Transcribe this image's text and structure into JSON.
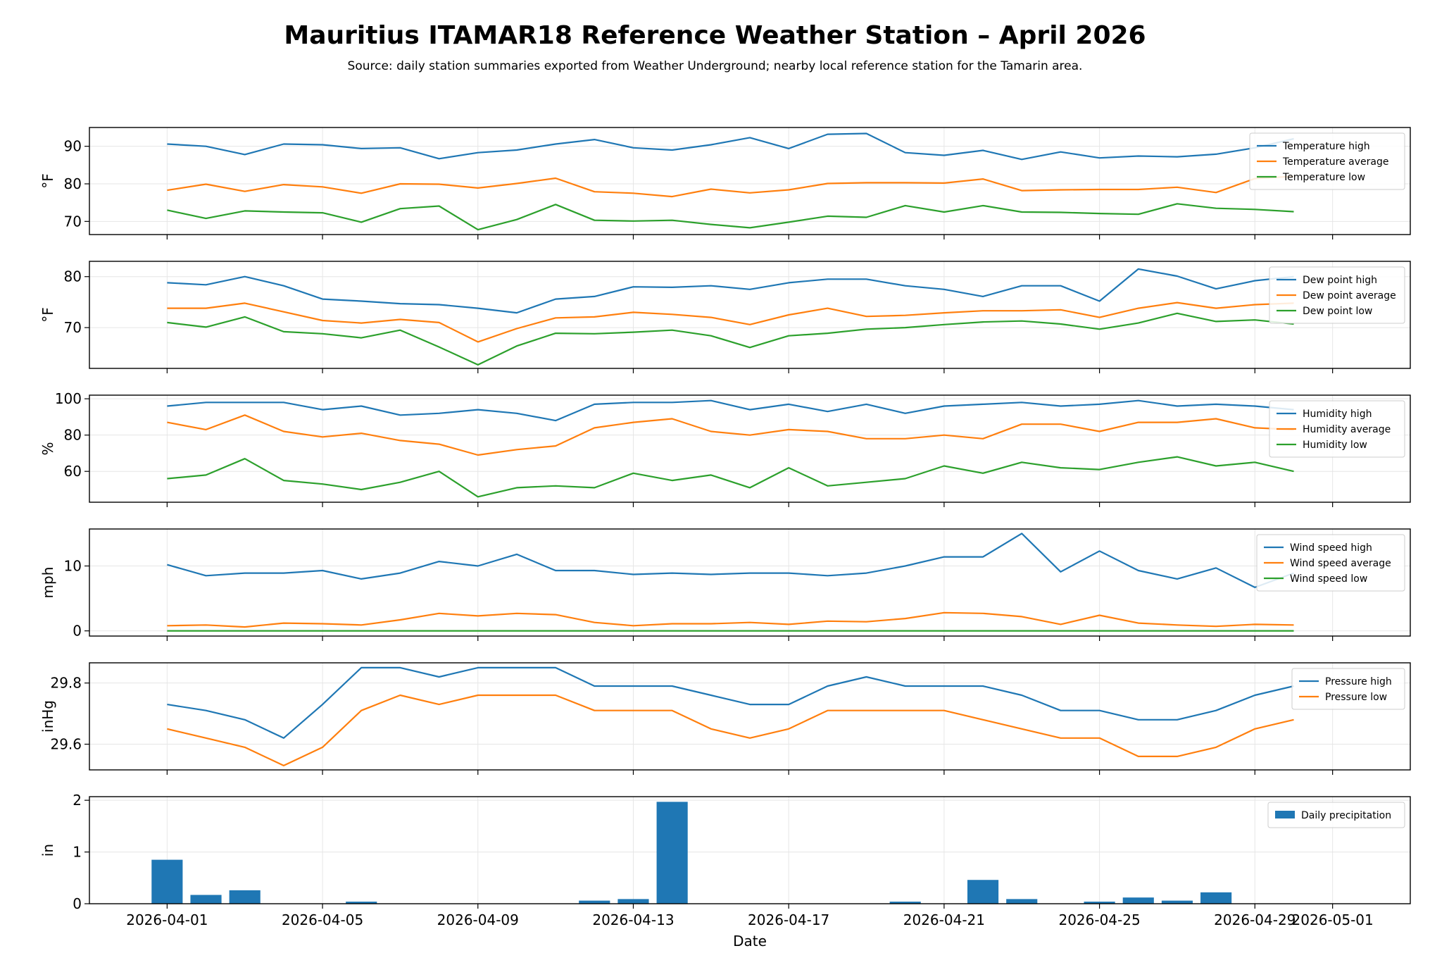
{
  "title": "Mauritius ITAMAR18 Reference Weather Station – April 2026",
  "subtitle": "Source: daily station summaries exported from Weather Underground; nearby local reference station for the Tamarin area.",
  "chart_data": {
    "type": "line",
    "xlabel": "Date",
    "x_ticks": [
      "2026-04-01",
      "2026-04-05",
      "2026-04-09",
      "2026-04-13",
      "2026-04-17",
      "2026-04-21",
      "2026-04-25",
      "2026-04-29",
      "2026-05-01"
    ],
    "x_range": [
      "2026-03-30",
      "2026-05-03"
    ],
    "dates": [
      "2026-04-01",
      "2026-04-02",
      "2026-04-03",
      "2026-04-04",
      "2026-04-05",
      "2026-04-06",
      "2026-04-07",
      "2026-04-08",
      "2026-04-09",
      "2026-04-10",
      "2026-04-11",
      "2026-04-12",
      "2026-04-13",
      "2026-04-14",
      "2026-04-15",
      "2026-04-16",
      "2026-04-17",
      "2026-04-18",
      "2026-04-19",
      "2026-04-20",
      "2026-04-21",
      "2026-04-22",
      "2026-04-23",
      "2026-04-24",
      "2026-04-25",
      "2026-04-26",
      "2026-04-27",
      "2026-04-28",
      "2026-04-29",
      "2026-04-30"
    ],
    "grid": true,
    "colors": [
      "#1f77b4",
      "#ff7f0e",
      "#2ca02c"
    ],
    "panels": [
      {
        "type": "line",
        "ylabel": "°F",
        "ylim": [
          66.5,
          95
        ],
        "yticks": [
          "70",
          "80",
          "90"
        ],
        "legend": "top-right",
        "series": [
          {
            "name": "Temperature high",
            "values": [
              90.6,
              90,
              87.8,
              90.6,
              90.4,
              89.4,
              89.6,
              86.7,
              88.3,
              89,
              90.6,
              91.8,
              89.6,
              89,
              90.4,
              92.3,
              89.4,
              93.2,
              93.4,
              88.3,
              87.6,
              88.9,
              86.5,
              88.5,
              86.9,
              87.4,
              87.2,
              87.9,
              89.6,
              92
            ]
          },
          {
            "name": "Temperature average",
            "values": [
              78.3,
              79.9,
              78,
              79.8,
              79.2,
              77.5,
              80,
              79.9,
              78.9,
              80.1,
              81.5,
              77.9,
              77.5,
              76.6,
              78.6,
              77.6,
              78.4,
              80.1,
              80.3,
              80.3,
              80.2,
              81.3,
              78.2,
              78.4,
              78.5,
              78.5,
              79.1,
              77.7,
              81.4,
              82
            ]
          },
          {
            "name": "Temperature low",
            "values": [
              73,
              70.8,
              72.8,
              72.5,
              72.3,
              69.8,
              73.4,
              74.1,
              67.8,
              70.5,
              74.5,
              70.3,
              70.1,
              70.3,
              69.2,
              68.3,
              69.8,
              71.4,
              71.1,
              74.2,
              72.5,
              74.2,
              72.5,
              72.4,
              72.1,
              71.9,
              74.7,
              73.5,
              73.2,
              72.6
            ]
          }
        ]
      },
      {
        "type": "line",
        "ylabel": "°F",
        "ylim": [
          62,
          83
        ],
        "yticks": [
          "70",
          "80"
        ],
        "legend": "top-right",
        "series": [
          {
            "name": "Dew point high",
            "values": [
              78.8,
              78.4,
              80,
              78.2,
              75.6,
              75.2,
              74.7,
              74.5,
              73.8,
              72.9,
              75.6,
              76.1,
              78,
              77.9,
              78.2,
              77.5,
              78.8,
              79.5,
              79.5,
              78.2,
              77.5,
              76.1,
              78.2,
              78.2,
              75.2,
              81.5,
              80.1,
              77.6,
              79.2,
              80
            ]
          },
          {
            "name": "Dew point average",
            "values": [
              73.8,
              73.8,
              74.8,
              73.1,
              71.4,
              70.9,
              71.6,
              71,
              67.2,
              69.8,
              71.9,
              72.1,
              73,
              72.6,
              72,
              70.6,
              72.5,
              73.8,
              72.2,
              72.4,
              72.9,
              73.3,
              73.3,
              73.5,
              72,
              73.8,
              74.9,
              73.8,
              74.5,
              74.8
            ]
          },
          {
            "name": "Dew point low",
            "values": [
              71,
              70.1,
              72.1,
              69.2,
              68.8,
              68,
              69.5,
              66.2,
              62.7,
              66.4,
              68.9,
              68.8,
              69.1,
              69.5,
              68.4,
              66.1,
              68.4,
              68.9,
              69.7,
              70,
              70.6,
              71.1,
              71.3,
              70.7,
              69.7,
              70.9,
              72.8,
              71.2,
              71.5,
              70.7
            ]
          }
        ]
      },
      {
        "type": "line",
        "ylabel": "%",
        "ylim": [
          43,
          102
        ],
        "yticks": [
          "60",
          "80",
          "100"
        ],
        "legend": "top-right",
        "series": [
          {
            "name": "Humidity high",
            "values": [
              96,
              98,
              98,
              98,
              94,
              96,
              91,
              92,
              94,
              92,
              88,
              97,
              98,
              98,
              99,
              94,
              97,
              93,
              97,
              92,
              96,
              97,
              98,
              96,
              97,
              99,
              96,
              97,
              96,
              94
            ]
          },
          {
            "name": "Humidity average",
            "values": [
              87,
              83,
              91,
              82,
              79,
              81,
              77,
              75,
              69,
              72,
              74,
              84,
              87,
              89,
              82,
              80,
              83,
              82,
              78,
              78,
              80,
              78,
              86,
              86,
              82,
              87,
              87,
              89,
              84,
              83
            ]
          },
          {
            "name": "Humidity low",
            "values": [
              56,
              58,
              67,
              55,
              53,
              50,
              54,
              60,
              46,
              51,
              52,
              51,
              59,
              55,
              58,
              51,
              62,
              52,
              54,
              56,
              63,
              59,
              65,
              62,
              61,
              65,
              68,
              63,
              65,
              60
            ]
          }
        ]
      },
      {
        "type": "line",
        "ylabel": "mph",
        "ylim": [
          -0.8,
          15.7
        ],
        "yticks": [
          "0",
          "10"
        ],
        "legend": "top-right",
        "series": [
          {
            "name": "Wind speed high",
            "values": [
              10.2,
              8.5,
              8.9,
              8.9,
              9.3,
              8,
              8.9,
              10.7,
              10,
              11.8,
              9.3,
              9.3,
              8.7,
              8.9,
              8.7,
              8.9,
              8.9,
              8.5,
              8.9,
              10,
              11.4,
              11.4,
              15,
              9.1,
              12.3,
              9.3,
              8,
              9.7,
              6.7,
              8.9
            ]
          },
          {
            "name": "Wind speed average",
            "values": [
              0.8,
              0.9,
              0.6,
              1.2,
              1.1,
              0.9,
              1.7,
              2.7,
              2.3,
              2.7,
              2.5,
              1.3,
              0.8,
              1.1,
              1.1,
              1.3,
              1,
              1.5,
              1.4,
              1.9,
              2.8,
              2.7,
              2.2,
              1,
              2.4,
              1.2,
              0.9,
              0.7,
              1,
              0.9
            ]
          },
          {
            "name": "Wind speed low",
            "values": [
              0,
              0,
              0,
              0,
              0,
              0,
              0,
              0,
              0,
              0,
              0,
              0,
              0,
              0,
              0,
              0,
              0,
              0,
              0,
              0,
              0,
              0,
              0,
              0,
              0,
              0,
              0,
              0,
              0,
              0
            ]
          }
        ]
      },
      {
        "type": "line",
        "ylabel": "inHg",
        "ylim": [
          29.516,
          29.866
        ],
        "yticks": [
          "29.6",
          "29.8"
        ],
        "legend": "top-right",
        "series": [
          {
            "name": "Pressure high",
            "values": [
              29.73,
              29.71,
              29.68,
              29.62,
              29.73,
              29.85,
              29.85,
              29.82,
              29.85,
              29.85,
              29.85,
              29.79,
              29.79,
              29.79,
              29.76,
              29.73,
              29.73,
              29.79,
              29.82,
              29.79,
              29.79,
              29.79,
              29.76,
              29.71,
              29.71,
              29.68,
              29.68,
              29.71,
              29.76,
              29.79
            ]
          },
          {
            "name": "Pressure low",
            "values": [
              29.65,
              29.62,
              29.59,
              29.53,
              29.59,
              29.71,
              29.76,
              29.73,
              29.76,
              29.76,
              29.76,
              29.71,
              29.71,
              29.71,
              29.65,
              29.62,
              29.65,
              29.71,
              29.71,
              29.71,
              29.71,
              29.68,
              29.65,
              29.62,
              29.62,
              29.56,
              29.56,
              29.59,
              29.65,
              29.68
            ]
          }
        ]
      },
      {
        "type": "bar",
        "ylabel": "in",
        "ylim": [
          0,
          2.07
        ],
        "yticks": [
          "0",
          "1",
          "2"
        ],
        "legend": "top-right",
        "series": [
          {
            "name": "Daily precipitation",
            "values": [
              0.85,
              0.17,
              0.26,
              0,
              0,
              0.04,
              0,
              0,
              0,
              0,
              0,
              0.06,
              0.09,
              1.97,
              0,
              0,
              0,
              0,
              0,
              0.04,
              0,
              0.46,
              0.09,
              0,
              0.04,
              0.12,
              0.06,
              0.22,
              0,
              0
            ]
          }
        ]
      }
    ]
  }
}
